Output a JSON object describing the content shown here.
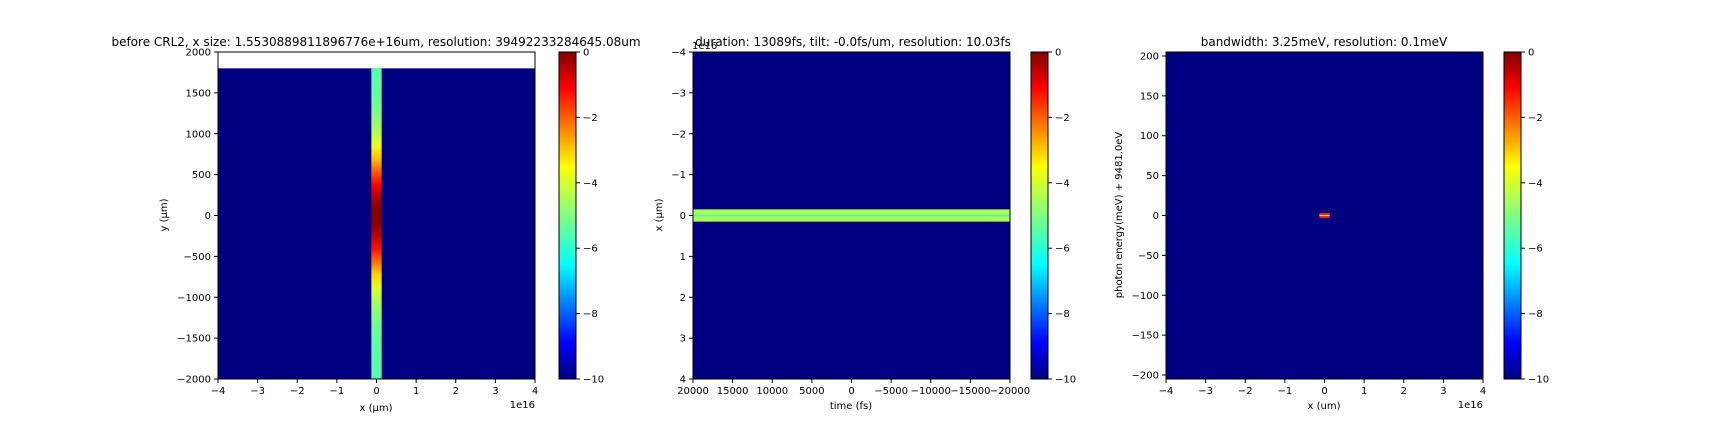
{
  "colormap": {
    "name": "jet",
    "stops": [
      "#000080",
      "#0000ff",
      "#00ffff",
      "#ffff00",
      "#ff0000",
      "#800000"
    ],
    "background": "#000080"
  },
  "chart_data": [
    {
      "type": "heatmap",
      "title": "before CRL2, x size: 1.5530889811896776e+16um, resolution: 39492233284645.08um",
      "xlabel": "x (μm)",
      "ylabel": "y (μm)",
      "xlim": [
        -4,
        4
      ],
      "ylim": [
        -2000,
        2000
      ],
      "y_inverted": false,
      "x_ticks": [
        -4,
        -3,
        -2,
        -1,
        0,
        1,
        2,
        3,
        4
      ],
      "x_tick_labels": [
        "−4",
        "−3",
        "−2",
        "−1",
        "0",
        "1",
        "2",
        "3",
        "4"
      ],
      "x_offset_label": "1e16",
      "y_ticks": [
        2000,
        1500,
        1000,
        500,
        0,
        -500,
        -1000,
        -1500,
        -2000
      ],
      "y_tick_labels": [
        "2000",
        "1500",
        "1000",
        "500",
        "0",
        "−500",
        "−1000",
        "−1500",
        "−2000"
      ],
      "data_extent_y_top": 1800,
      "feature": {
        "kind": "vertical_band",
        "x_range": [
          -0.13,
          0.13
        ],
        "peak_y": 0,
        "edge_value": -5.5,
        "peak_value": 0,
        "falloff": 800
      },
      "colorbar": {
        "range": [
          -10,
          0
        ],
        "ticks": [
          0,
          -2,
          -4,
          -6,
          -8,
          -10
        ],
        "tick_labels": [
          "0",
          "−2",
          "−4",
          "−6",
          "−8",
          "−10"
        ]
      }
    },
    {
      "type": "heatmap",
      "title": "duration: 13089fs, tilt: -0.0fs/um, resolution: 10.03fs",
      "xlabel": "time (fs)",
      "ylabel": "x (μm)",
      "xlim": [
        20000,
        -20000
      ],
      "ylim": [
        4,
        -4
      ],
      "y_inverted": true,
      "x_ticks": [
        20000,
        15000,
        10000,
        5000,
        0,
        -5000,
        -10000,
        -15000,
        -20000
      ],
      "x_tick_labels": [
        "20000",
        "15000",
        "10000",
        "5000",
        "0",
        "−5000",
        "−10000",
        "−15000",
        "−20000"
      ],
      "y_ticks": [
        -4,
        -3,
        -2,
        -1,
        0,
        1,
        2,
        3,
        4
      ],
      "y_tick_labels": [
        "−4",
        "−3",
        "−2",
        "−1",
        "0",
        "1",
        "2",
        "3",
        "4"
      ],
      "y_offset_label": "1e16",
      "feature": {
        "kind": "horizontal_band",
        "y_range": [
          -0.15,
          0.15
        ],
        "value": -4.5
      },
      "colorbar": {
        "range": [
          -10,
          0
        ],
        "ticks": [
          0,
          -2,
          -4,
          -6,
          -8,
          -10
        ],
        "tick_labels": [
          "0",
          "−2",
          "−4",
          "−6",
          "−8",
          "−10"
        ]
      }
    },
    {
      "type": "heatmap",
      "title": "bandwidth: 3.25meV, resolution: 0.1meV",
      "xlabel": "x (um)",
      "ylabel": "photon energy(meV) + 9481.0eV",
      "xlim": [
        -4,
        4
      ],
      "ylim": [
        -205,
        205
      ],
      "y_inverted": false,
      "x_ticks": [
        -4,
        -3,
        -2,
        -1,
        0,
        1,
        2,
        3,
        4
      ],
      "x_tick_labels": [
        "−4",
        "−3",
        "−2",
        "−1",
        "0",
        "1",
        "2",
        "3",
        "4"
      ],
      "x_offset_label": "1e16",
      "y_ticks": [
        200,
        150,
        100,
        50,
        0,
        -50,
        -100,
        -150,
        -200
      ],
      "y_tick_labels": [
        "200",
        "150",
        "100",
        "50",
        "0",
        "−50",
        "−100",
        "−150",
        "−200"
      ],
      "feature": {
        "kind": "spot",
        "x_range": [
          -0.13,
          0.13
        ],
        "y_range": [
          -3,
          3
        ],
        "value": -1.5
      },
      "colorbar": {
        "range": [
          -10,
          0
        ],
        "ticks": [
          0,
          -2,
          -4,
          -6,
          -8,
          -10
        ],
        "tick_labels": [
          "0",
          "−2",
          "−4",
          "−6",
          "−8",
          "−10"
        ]
      }
    }
  ]
}
